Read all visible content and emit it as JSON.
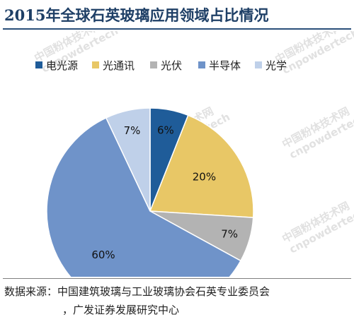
{
  "chart_data": {
    "type": "pie",
    "title": "2015年全球石英玻璃应用领域占比情况",
    "slices": [
      {
        "name": "电光源",
        "value": 6,
        "label": "6%",
        "color": "#1f5c99"
      },
      {
        "name": "光通讯",
        "value": 20,
        "label": "20%",
        "color": "#e8c766"
      },
      {
        "name": "光伏",
        "value": 7,
        "label": "7%",
        "color": "#b3b3b3"
      },
      {
        "name": "半导体",
        "value": 60,
        "label": "60%",
        "color": "#6f93c9"
      },
      {
        "name": "光学",
        "value": 7,
        "label": "7%",
        "color": "#bfd0e9"
      }
    ],
    "legend_position": "top",
    "start_angle_deg": 0,
    "direction": "clockwise"
  },
  "source": {
    "line1": "数据来源：中国建筑玻璃与工业玻璃协会石英专业委员会",
    "line2": "，广发证券发展研究中心"
  },
  "watermark": {
    "cn": "中国粉体技术网",
    "en": "cnpowdertech"
  }
}
